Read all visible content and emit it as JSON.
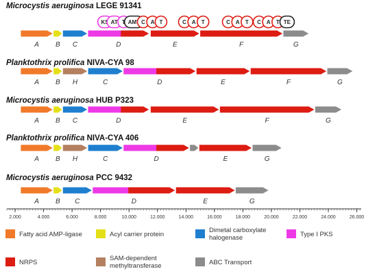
{
  "colors": {
    "fatty": "#f07a2a",
    "acp": "#e4e018",
    "halo": "#1f7fcf",
    "pks": "#ee3ae6",
    "nrps": "#dd1c12",
    "sam": "#b48060",
    "abc": "#8c8c8c"
  },
  "clusters": [
    {
      "species": "Microcystis aeruginosa",
      "strain": "LEGE 91341",
      "genes": [
        {
          "label": "A",
          "start": 1.5,
          "end": 4.9,
          "type": "fatty"
        },
        {
          "label": "B",
          "start": 5.0,
          "end": 5.9,
          "type": "acp"
        },
        {
          "label": "C",
          "start": 6.0,
          "end": 8.6,
          "type": "halo"
        },
        {
          "label": "D",
          "start": 8.7,
          "end": 15.2,
          "type": "pks",
          "split": 12.2
        },
        {
          "label": "E",
          "start": 15.4,
          "end": 20.6,
          "type": "nrps"
        },
        {
          "label": "F",
          "start": 20.7,
          "end": 29.5,
          "type": "nrps"
        },
        {
          "label": "G",
          "start": 29.6,
          "end": 32.3,
          "type": "abc"
        }
      ],
      "domains": [
        {
          "label": "KS",
          "pos": 10.5,
          "style": "pks"
        },
        {
          "label": "AT",
          "pos": 11.5,
          "style": "pks"
        },
        {
          "label": "T",
          "pos": 12.5,
          "style": "pks"
        },
        {
          "label": "AMT",
          "pos": 13.6,
          "style": "black"
        },
        {
          "label": "C",
          "pos": 14.6,
          "style": "nrps"
        },
        {
          "label": "A",
          "pos": 15.6,
          "style": "nrps"
        },
        {
          "label": "T",
          "pos": 16.5,
          "style": "nrps"
        },
        {
          "label": "C",
          "pos": 19.0,
          "style": "nrps"
        },
        {
          "label": "A",
          "pos": 20.0,
          "style": "nrps"
        },
        {
          "label": "T",
          "pos": 21.0,
          "style": "nrps"
        },
        {
          "label": "C",
          "pos": 23.7,
          "style": "nrps"
        },
        {
          "label": "A",
          "pos": 24.7,
          "style": "nrps"
        },
        {
          "label": "T",
          "pos": 25.7,
          "style": "nrps"
        },
        {
          "label": "C",
          "pos": 27.0,
          "style": "nrps"
        },
        {
          "label": "A",
          "pos": 28.0,
          "style": "nrps"
        },
        {
          "label": "T",
          "pos": 29.0,
          "style": "nrps"
        },
        {
          "label": "TE",
          "pos": 30.0,
          "style": "black"
        }
      ]
    },
    {
      "species": "Planktothrix prolifica",
      "strain": "NIVA-CYA 98",
      "genes": [
        {
          "label": "A",
          "start": 1.5,
          "end": 4.9,
          "type": "fatty"
        },
        {
          "label": "B",
          "start": 5.0,
          "end": 5.9,
          "type": "acp"
        },
        {
          "label": "H",
          "start": 6.0,
          "end": 8.6,
          "type": "sam"
        },
        {
          "label": "C",
          "start": 8.7,
          "end": 12.4,
          "type": "halo"
        },
        {
          "label": "D",
          "start": 12.5,
          "end": 20.2,
          "type": "pks",
          "split": 16.0
        },
        {
          "label": "E",
          "start": 20.3,
          "end": 26.0,
          "type": "nrps"
        },
        {
          "label": "F",
          "start": 26.1,
          "end": 34.2,
          "type": "nrps"
        },
        {
          "label": "G",
          "start": 34.3,
          "end": 37.0,
          "type": "abc"
        }
      ]
    },
    {
      "species": "Microcystis aeruginosa",
      "strain": "HUB P323",
      "genes": [
        {
          "label": "A",
          "start": 1.5,
          "end": 4.9,
          "type": "fatty"
        },
        {
          "label": "B",
          "start": 5.0,
          "end": 5.9,
          "type": "acp"
        },
        {
          "label": "C",
          "start": 6.0,
          "end": 8.6,
          "type": "halo"
        },
        {
          "label": "D",
          "start": 8.7,
          "end": 15.2,
          "type": "pks",
          "split": 12.2
        },
        {
          "label": "E",
          "start": 15.4,
          "end": 22.7,
          "type": "nrps"
        },
        {
          "label": "F",
          "start": 22.8,
          "end": 32.9,
          "type": "nrps"
        },
        {
          "label": "G",
          "start": 33.0,
          "end": 35.8,
          "type": "abc"
        }
      ]
    },
    {
      "species": "Planktothrix prolifica",
      "strain": "NIVA-CYA 406",
      "genes": [
        {
          "label": "A",
          "start": 1.5,
          "end": 4.9,
          "type": "fatty"
        },
        {
          "label": "B",
          "start": 5.0,
          "end": 5.9,
          "type": "acp"
        },
        {
          "label": "H",
          "start": 6.0,
          "end": 8.6,
          "type": "sam"
        },
        {
          "label": "C",
          "start": 8.7,
          "end": 12.4,
          "type": "halo"
        },
        {
          "label": "D",
          "start": 12.5,
          "end": 19.5,
          "type": "pks",
          "split": 16.0
        },
        {
          "label": "",
          "start": 19.6,
          "end": 20.5,
          "type": "abc"
        },
        {
          "label": "E",
          "start": 20.6,
          "end": 26.2,
          "type": "nrps"
        },
        {
          "label": "G",
          "start": 26.3,
          "end": 29.4,
          "type": "abc"
        }
      ]
    },
    {
      "species": "Microcystis aeruginosa",
      "strain": "PCC 9432",
      "genes": [
        {
          "label": "A",
          "start": 1.5,
          "end": 4.9,
          "type": "fatty"
        },
        {
          "label": "B",
          "start": 5.0,
          "end": 5.9,
          "type": "acp"
        },
        {
          "label": "C",
          "start": 6.0,
          "end": 9.1,
          "type": "halo"
        },
        {
          "label": "D",
          "start": 9.2,
          "end": 18.0,
          "type": "pks",
          "split": 13.0
        },
        {
          "label": "E",
          "start": 18.1,
          "end": 24.4,
          "type": "nrps"
        },
        {
          "label": "G",
          "start": 24.5,
          "end": 28.0,
          "type": "abc"
        }
      ]
    }
  ],
  "axis": {
    "ticks": [
      "2.000",
      "4.000",
      "6.000",
      "8.000",
      "10.000",
      "12.000",
      "14.000",
      "16.000",
      "18.000",
      "20.000",
      "22.000",
      "24.000",
      "26.000"
    ]
  },
  "legend": [
    {
      "type": "fatty",
      "lines": [
        "Fatty acid AMP-ligase"
      ]
    },
    {
      "type": "acp",
      "lines": [
        "Acyl carrier protein"
      ]
    },
    {
      "type": "halo",
      "lines": [
        "Dimetal carboxylate",
        "halogenase"
      ]
    },
    {
      "type": "pks",
      "lines": [
        "Type I PKS"
      ]
    },
    {
      "type": "nrps",
      "lines": [
        "NRPS"
      ]
    },
    {
      "type": "sam",
      "lines": [
        "SAM-dependent",
        "methyltransferase"
      ]
    },
    {
      "type": "abc",
      "lines": [
        "ABC Transport"
      ]
    }
  ]
}
